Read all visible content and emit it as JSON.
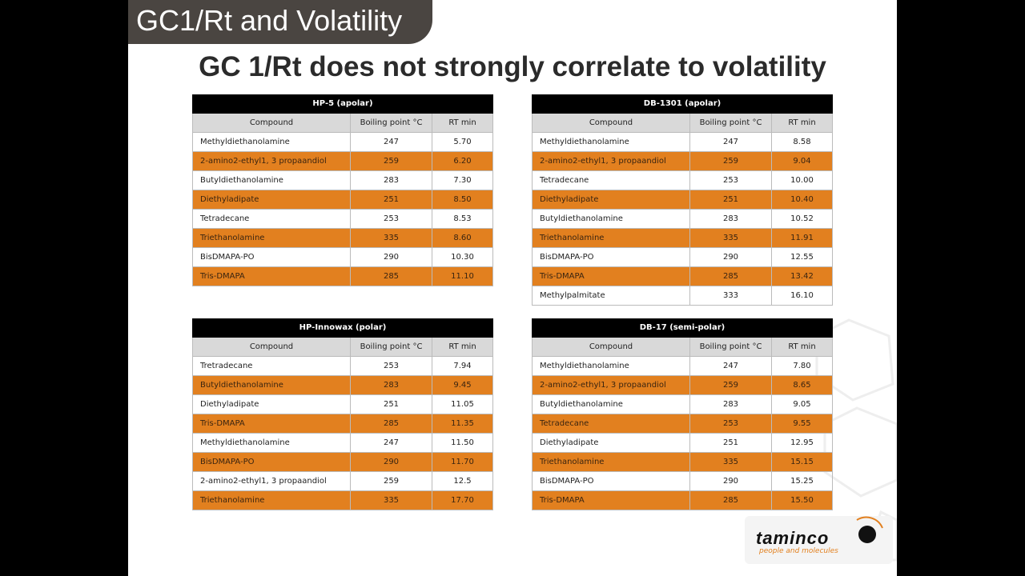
{
  "header": {
    "tab_title": "GC1/Rt and Volatility",
    "heading": "GC 1/Rt does not strongly correlate to volatility"
  },
  "tables": [
    {
      "title": "HP-5 (apolar)",
      "columns": [
        "Compound",
        "Boiling point °C",
        "RT min"
      ],
      "rows": [
        [
          "Methyldiethanolamine",
          247,
          "5.70"
        ],
        [
          "2-amino2-ethyl1, 3 propaandiol",
          259,
          "6.20"
        ],
        [
          "Butyldiethanolamine",
          283,
          "7.30"
        ],
        [
          "Diethyladipate",
          251,
          "8.50"
        ],
        [
          "Tetradecane",
          253,
          "8.53"
        ],
        [
          "Triethanolamine",
          335,
          "8.60"
        ],
        [
          "BisDMAPA-PO",
          290,
          "10.30"
        ],
        [
          "Tris-DMAPA",
          285,
          "11.10"
        ]
      ]
    },
    {
      "title": "DB-1301 (apolar)",
      "columns": [
        "Compound",
        "Boiling point °C",
        "RT min"
      ],
      "rows": [
        [
          "Methyldiethanolamine",
          247,
          "8.58"
        ],
        [
          "2-amino2-ethyl1, 3 propaandiol",
          259,
          "9.04"
        ],
        [
          "Tetradecane",
          253,
          "10.00"
        ],
        [
          "Diethyladipate",
          251,
          "10.40"
        ],
        [
          "Butyldiethanolamine",
          283,
          "10.52"
        ],
        [
          "Triethanolamine",
          335,
          "11.91"
        ],
        [
          "BisDMAPA-PO",
          290,
          "12.55"
        ],
        [
          "Tris-DMAPA",
          285,
          "13.42"
        ],
        [
          "Methylpalmitate",
          333,
          "16.10"
        ]
      ]
    },
    {
      "title": "HP-Innowax (polar)",
      "columns": [
        "Compound",
        "Boiling point °C",
        "RT min"
      ],
      "rows": [
        [
          "Tretradecane",
          253,
          "7.94"
        ],
        [
          "Butyldiethanolamine",
          283,
          "9.45"
        ],
        [
          "Diethyladipate",
          251,
          "11.05"
        ],
        [
          "Tris-DMAPA",
          285,
          "11.35"
        ],
        [
          "Methyldiethanolamine",
          247,
          "11.50"
        ],
        [
          "BisDMAPA-PO",
          290,
          "11.70"
        ],
        [
          "2-amino2-ethyl1, 3 propaandiol",
          259,
          "12.5"
        ],
        [
          "Triethanolamine",
          335,
          "17.70"
        ]
      ]
    },
    {
      "title": "DB-17 (semi-polar)",
      "columns": [
        "Compound",
        "Boiling point °C",
        "RT min"
      ],
      "rows": [
        [
          "Methyldiethanolamine",
          247,
          "7.80"
        ],
        [
          "2-amino2-ethyl1, 3 propaandiol",
          259,
          "8.65"
        ],
        [
          "Butyldiethanolamine",
          283,
          "9.05"
        ],
        [
          "Tetradecane",
          253,
          "9.55"
        ],
        [
          "Diethyladipate",
          251,
          "12.95"
        ],
        [
          "Triethanolamine",
          335,
          "15.15"
        ],
        [
          "BisDMAPA-PO",
          290,
          "15.25"
        ],
        [
          "Tris-DMAPA",
          285,
          "15.50"
        ]
      ]
    }
  ],
  "logo": {
    "name": "taminco",
    "tagline": "people and molecules"
  }
}
